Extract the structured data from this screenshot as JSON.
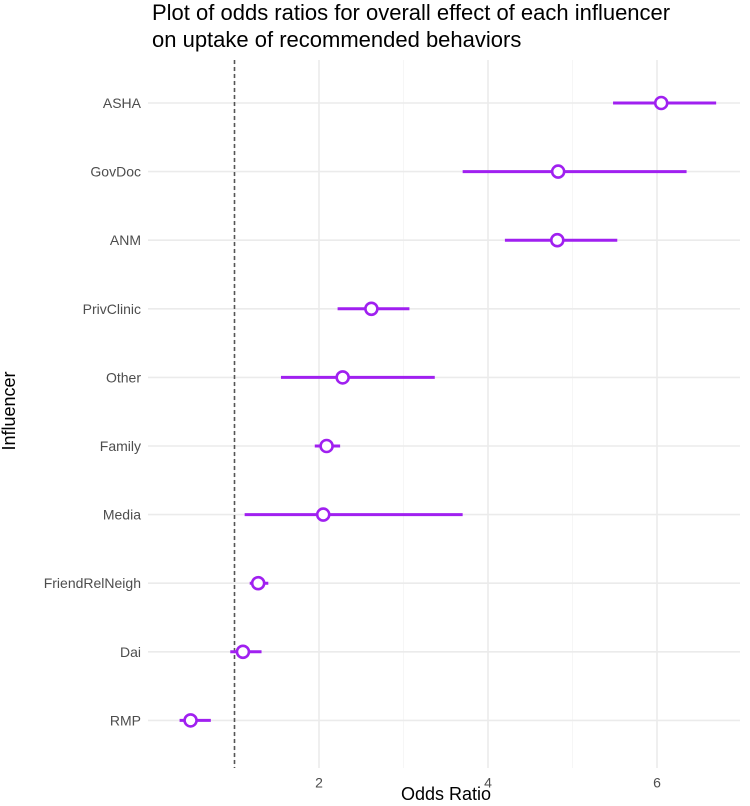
{
  "chart_data": {
    "type": "forest",
    "title_lines": [
      "Plot of odds ratios for overall effect of each influencer",
      "on uptake of recommended behaviors"
    ],
    "xlabel": "Odds Ratio",
    "ylabel": "Influencer",
    "xlim": [
      0.05,
      7.0
    ],
    "x_ticks": [
      2,
      4,
      6
    ],
    "x_tick_labels": [
      "2",
      "4",
      "6"
    ],
    "reference_line": 1,
    "point_color": "#a020f0",
    "categories": [
      "ASHA",
      "GovDoc",
      "ANM",
      "PrivClinic",
      "Other",
      "Family",
      "Media",
      "FriendRelNeigh",
      "Dai",
      "RMP"
    ],
    "estimates": [
      6.05,
      4.83,
      4.82,
      2.62,
      2.28,
      2.09,
      2.05,
      1.28,
      1.1,
      0.48
    ],
    "lower": [
      5.48,
      3.7,
      4.2,
      2.22,
      1.55,
      1.95,
      1.12,
      1.18,
      0.95,
      0.35
    ],
    "upper": [
      6.7,
      6.35,
      5.53,
      3.07,
      3.37,
      2.25,
      3.7,
      1.4,
      1.32,
      0.72
    ]
  }
}
